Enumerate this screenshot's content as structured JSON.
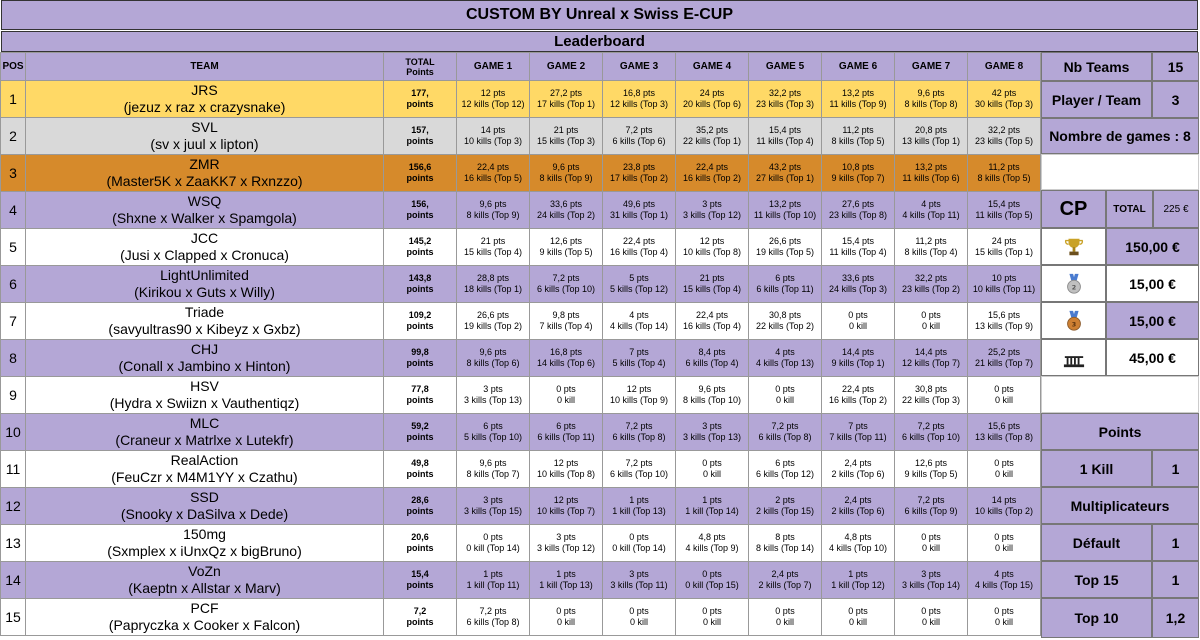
{
  "title": "CUSTOM BY Unreal x Swiss E-CUP",
  "subtitle": "Leaderboard",
  "headers": {
    "pos": "POS",
    "team": "TEAM",
    "total_line1": "TOTAL",
    "total_line2": "Points",
    "games": [
      "GAME 1",
      "GAME 2",
      "GAME 3",
      "GAME 4",
      "GAME 5",
      "GAME 6",
      "GAME 7",
      "GAME 8"
    ]
  },
  "rows": [
    {
      "pos": "1",
      "name": "JRS",
      "players": "(jezuz x raz x crazysnake)",
      "total": "177,",
      "total_unit": "points",
      "style": "gold",
      "games": [
        [
          "12 pts",
          "12 kills (Top 12)"
        ],
        [
          "27,2 pts",
          "17 kills (Top 1)"
        ],
        [
          "16,8 pts",
          "12 kills (Top 3)"
        ],
        [
          "24 pts",
          "20 kills (Top 6)"
        ],
        [
          "32,2 pts",
          "23 kills (Top 3)"
        ],
        [
          "13,2 pts",
          "11 kills (Top 9)"
        ],
        [
          "9,6 pts",
          "8 kills (Top 8)"
        ],
        [
          "42 pts",
          "30 kills (Top 3)"
        ]
      ]
    },
    {
      "pos": "2",
      "name": "SVL",
      "players": "(sv x juul x lipton)",
      "total": "157,",
      "total_unit": "points",
      "style": "silver",
      "games": [
        [
          "14 pts",
          "10 kills (Top 3)"
        ],
        [
          "21 pts",
          "15 kills (Top 3)"
        ],
        [
          "7,2 pts",
          "6 kills (Top 6)"
        ],
        [
          "35,2 pts",
          "22 kills (Top 1)"
        ],
        [
          "15,4 pts",
          "11 kills (Top 4)"
        ],
        [
          "11,2 pts",
          "8 kills (Top 5)"
        ],
        [
          "20,8 pts",
          "13 kills (Top 1)"
        ],
        [
          "32,2 pts",
          "23 kills (Top 5)"
        ]
      ]
    },
    {
      "pos": "3",
      "name": "ZMR",
      "players": "(Master5K x ZaaKK7 x Rxnzzo)",
      "total": "156,6",
      "total_unit": "points",
      "style": "bronze",
      "games": [
        [
          "22,4 pts",
          "16 kills (Top 5)"
        ],
        [
          "9,6 pts",
          "8 kills (Top 9)"
        ],
        [
          "23,8 pts",
          "17 kills (Top 2)"
        ],
        [
          "22,4 pts",
          "16 kills (Top 2)"
        ],
        [
          "43,2 pts",
          "27 kills (Top 1)"
        ],
        [
          "10,8 pts",
          "9 kills (Top 7)"
        ],
        [
          "13,2 pts",
          "11 kills (Top 6)"
        ],
        [
          "11,2 pts",
          "8 kills (Top 5)"
        ]
      ]
    },
    {
      "pos": "4",
      "name": "WSQ",
      "players": "(Shxne x Walker x Spamgola)",
      "total": "156,",
      "total_unit": "points",
      "style": "purple",
      "games": [
        [
          "9,6 pts",
          "8 kills (Top 9)"
        ],
        [
          "33,6 pts",
          "24 kills (Top 2)"
        ],
        [
          "49,6 pts",
          "31 kills (Top 1)"
        ],
        [
          "3 pts",
          "3 kills (Top 12)"
        ],
        [
          "13,2 pts",
          "11 kills (Top 10)"
        ],
        [
          "27,6 pts",
          "23 kills (Top 8)"
        ],
        [
          "4 pts",
          "4 kills (Top 11)"
        ],
        [
          "15,4 pts",
          "11 kills (Top 5)"
        ]
      ]
    },
    {
      "pos": "5",
      "name": "JCC",
      "players": "(Jusi x Clapped x Cronuca)",
      "total": "145,2",
      "total_unit": "points",
      "style": "white",
      "games": [
        [
          "21 pts",
          "15 kills (Top 4)"
        ],
        [
          "12,6 pts",
          "9 kills (Top 5)"
        ],
        [
          "22,4 pts",
          "16 kills (Top 4)"
        ],
        [
          "12 pts",
          "10 kills (Top 8)"
        ],
        [
          "26,6 pts",
          "19 kills (Top 5)"
        ],
        [
          "15,4 pts",
          "11 kills (Top 4)"
        ],
        [
          "11,2 pts",
          "8 kills (Top 4)"
        ],
        [
          "24 pts",
          "15 kills (Top 1)"
        ]
      ]
    },
    {
      "pos": "6",
      "name": "LightUnlimited",
      "players": "(Kirikou x Guts x Willy)",
      "total": "143,8",
      "total_unit": "points",
      "style": "purple",
      "games": [
        [
          "28,8 pts",
          "18 kills (Top 1)"
        ],
        [
          "7,2 pts",
          "6 kills (Top 10)"
        ],
        [
          "5 pts",
          "5 kills (Top 12)"
        ],
        [
          "21 pts",
          "15 kills (Top 4)"
        ],
        [
          "6 pts",
          "6 kills (Top 11)"
        ],
        [
          "33,6 pts",
          "24 kills (Top 3)"
        ],
        [
          "32,2 pts",
          "23 kills (Top 2)"
        ],
        [
          "10 pts",
          "10 kills (Top 11)"
        ]
      ]
    },
    {
      "pos": "7",
      "name": "Triade",
      "players": "(savyultras90 x Kibeyz x Gxbz)",
      "total": "109,2",
      "total_unit": "points",
      "style": "white",
      "games": [
        [
          "26,6 pts",
          "19 kills (Top 2)"
        ],
        [
          "9,8 pts",
          "7 kills (Top 4)"
        ],
        [
          "4 pts",
          "4 kills (Top 14)"
        ],
        [
          "22,4 pts",
          "16 kills (Top 4)"
        ],
        [
          "30,8 pts",
          "22 kills (Top 2)"
        ],
        [
          "0 pts",
          "0 kill"
        ],
        [
          "0 pts",
          "0 kill"
        ],
        [
          "15,6 pts",
          "13 kills (Top 9)"
        ]
      ]
    },
    {
      "pos": "8",
      "name": "CHJ",
      "players": "(Conall x Jambino x Hinton)",
      "total": "99,8",
      "total_unit": "points",
      "style": "purple",
      "games": [
        [
          "9,6 pts",
          "8 kills (Top 6)"
        ],
        [
          "16,8 pts",
          "14 kills (Top 6)"
        ],
        [
          "7 pts",
          "5 kills (Top 4)"
        ],
        [
          "8,4 pts",
          "6 kills (Top 4)"
        ],
        [
          "4 pts",
          "4 kills (Top 13)"
        ],
        [
          "14,4 pts",
          "9 kills (Top 1)"
        ],
        [
          "14,4 pts",
          "12 kills (Top 7)"
        ],
        [
          "25,2 pts",
          "21 kills (Top 7)"
        ]
      ]
    },
    {
      "pos": "9",
      "name": "HSV",
      "players": "(Hydra x Swiizn x Vauthentiqz)",
      "total": "77,8",
      "total_unit": "points",
      "style": "white",
      "games": [
        [
          "3 pts",
          "3 kills (Top 13)"
        ],
        [
          "0 pts",
          "0 kill"
        ],
        [
          "12 pts",
          "10 kills (Top 9)"
        ],
        [
          "9,6 pts",
          "8 kills (Top 10)"
        ],
        [
          "0 pts",
          "0 kill"
        ],
        [
          "22,4 pts",
          "16 kills (Top 2)"
        ],
        [
          "30,8 pts",
          "22 kills (Top 3)"
        ],
        [
          "0 pts",
          "0 kill"
        ]
      ]
    },
    {
      "pos": "10",
      "name": "MLC",
      "players": "(Craneur x Matrlxe x Lutekfr)",
      "total": "59,2",
      "total_unit": "points",
      "style": "purple",
      "games": [
        [
          "6 pts",
          "5 kills (Top 10)"
        ],
        [
          "6 pts",
          "6 kills (Top 11)"
        ],
        [
          "7,2 pts",
          "6 kills (Top 8)"
        ],
        [
          "3 pts",
          "3 kills (Top 13)"
        ],
        [
          "7,2 pts",
          "6 kills (Top 8)"
        ],
        [
          "7 pts",
          "7 kills (Top 11)"
        ],
        [
          "7,2 pts",
          "6 kills (Top 10)"
        ],
        [
          "15,6 pts",
          "13 kills (Top 8)"
        ]
      ]
    },
    {
      "pos": "11",
      "name": "RealAction",
      "players": "(FeuCzr x M4M1YY x Czathu)",
      "total": "49,8",
      "total_unit": "points",
      "style": "white",
      "games": [
        [
          "9,6 pts",
          "8 kills (Top 7)"
        ],
        [
          "12 pts",
          "10 kills (Top 8)"
        ],
        [
          "7,2 pts",
          "6 kills (Top 10)"
        ],
        [
          "0 pts",
          "0 kill"
        ],
        [
          "6 pts",
          "6 kills (Top 12)"
        ],
        [
          "2,4 pts",
          "2 kills (Top 6)"
        ],
        [
          "12,6 pts",
          "9 kills (Top 5)"
        ],
        [
          "0 pts",
          "0 kill"
        ]
      ]
    },
    {
      "pos": "12",
      "name": "SSD",
      "players": "(Snooky x DaSilva x Dede)",
      "total": "28,6",
      "total_unit": "points",
      "style": "purple",
      "games": [
        [
          "3 pts",
          "3 kills (Top 15)"
        ],
        [
          "12 pts",
          "10 kills (Top 7)"
        ],
        [
          "1 pts",
          "1 kill (Top 13)"
        ],
        [
          "1 pts",
          "1 kill (Top 14)"
        ],
        [
          "2 pts",
          "2 kills (Top 15)"
        ],
        [
          "2,4 pts",
          "2 kills (Top 6)"
        ],
        [
          "7,2 pts",
          "6 kills (Top 9)"
        ],
        [
          "14 pts",
          "10 kills (Top 2)"
        ]
      ]
    },
    {
      "pos": "13",
      "name": "150mg",
      "players": "(Sxmplex x iUnxQz x bigBruno)",
      "total": "20,6",
      "total_unit": "points",
      "style": "white",
      "games": [
        [
          "0 pts",
          "0 kill (Top 14)"
        ],
        [
          "3 pts",
          "3 kills (Top 12)"
        ],
        [
          "0 pts",
          "0 kill (Top 14)"
        ],
        [
          "4,8 pts",
          "4 kills (Top 9)"
        ],
        [
          "8 pts",
          "8 kills (Top 14)"
        ],
        [
          "4,8 pts",
          "4 kills (Top 10)"
        ],
        [
          "0 pts",
          "0 kill"
        ],
        [
          "0 pts",
          "0 kill"
        ]
      ]
    },
    {
      "pos": "14",
      "name": "VoZn",
      "players": "(Kaeptn x Allstar x Marv)",
      "total": "15,4",
      "total_unit": "points",
      "style": "purple",
      "games": [
        [
          "1 pts",
          "1 kill (Top 11)"
        ],
        [
          "1 pts",
          "1 kill (Top 13)"
        ],
        [
          "3 pts",
          "3 kills (Top 11)"
        ],
        [
          "0 pts",
          "0 kill (Top 15)"
        ],
        [
          "2,4 pts",
          "2 kills (Top 7)"
        ],
        [
          "1 pts",
          "1 kill (Top 12)"
        ],
        [
          "3 pts",
          "3 kills (Top 14)"
        ],
        [
          "4 pts",
          "4 kills (Top 15)"
        ]
      ]
    },
    {
      "pos": "15",
      "name": "PCF",
      "players": "(Papryczka x Cooker x Falcon)",
      "total": "7,2",
      "total_unit": "points",
      "style": "white",
      "games": [
        [
          "7,2 pts",
          "6 kills (Top 8)"
        ],
        [
          "0 pts",
          "0 kill"
        ],
        [
          "0 pts",
          "0 kill"
        ],
        [
          "0 pts",
          "0 kill"
        ],
        [
          "0 pts",
          "0 kill"
        ],
        [
          "0 pts",
          "0 kill"
        ],
        [
          "0 pts",
          "0 kill"
        ],
        [
          "0 pts",
          "0 kill"
        ]
      ]
    }
  ],
  "side": {
    "nb_teams_label": "Nb Teams",
    "nb_teams_value": "15",
    "player_team_label": "Player / Team",
    "player_team_value": "3",
    "nb_games": "Nombre de games : 8",
    "cp_label": "CP",
    "total_label": "TOTAL",
    "total_value": "225 €",
    "prizes": [
      "150,00 €",
      "15,00 €",
      "15,00 €",
      "45,00 €"
    ],
    "prize_icons": [
      "trophy-icon",
      "silver-medal-icon",
      "bronze-medal-icon",
      "podium-icon"
    ],
    "points_label": "Points",
    "kill_label": "1 Kill",
    "kill_value": "1",
    "multiplicateurs_label": "Multiplicateurs",
    "multipliers": [
      {
        "label": "Défault",
        "value": "1"
      },
      {
        "label": "Top 15",
        "value": "1"
      },
      {
        "label": "Top 10",
        "value": "1,2"
      }
    ]
  },
  "colors": {
    "header_purple": "#b4a7d6",
    "gold": "#ffd966",
    "silver": "#d9d9d9",
    "bronze": "#d68a2b"
  }
}
